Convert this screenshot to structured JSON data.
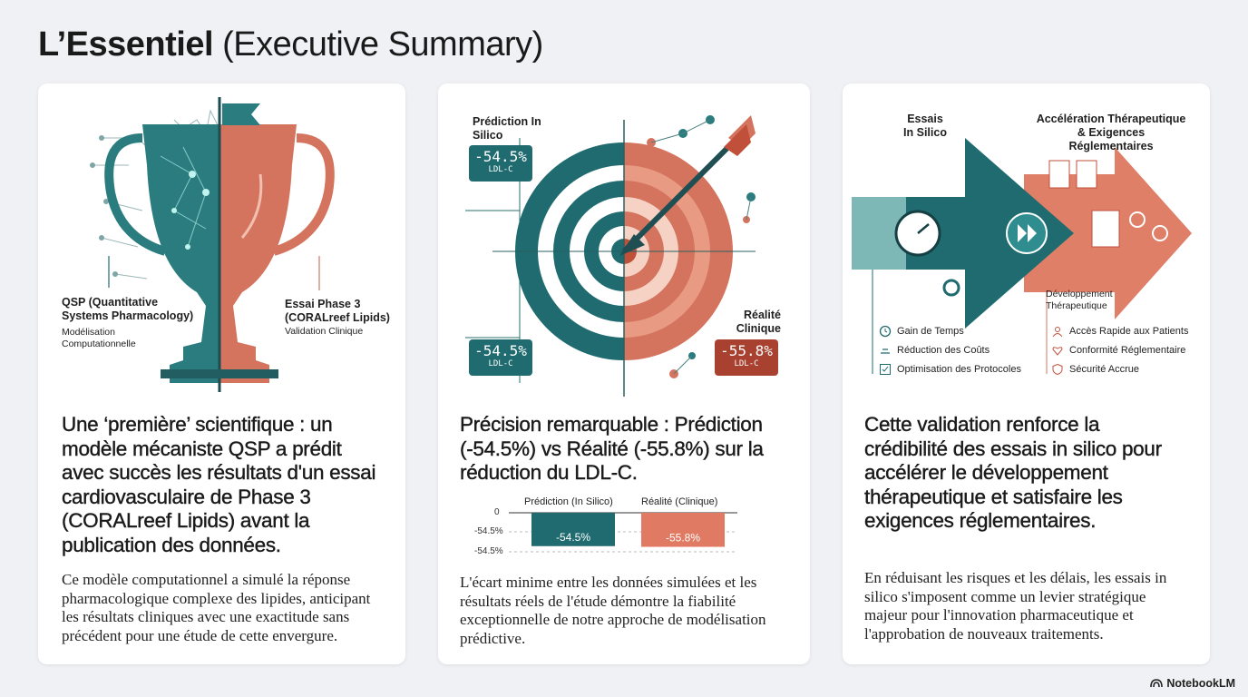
{
  "title": {
    "bold": "L’Essentiel",
    "rest": " (Executive Summary)"
  },
  "card1": {
    "left_label_title": "QSP (Quantitative Systems Pharmacology)",
    "left_label_sub": "Modélisation Computationnelle",
    "right_label_title": "Essai Phase 3 (CORALreef Lipids)",
    "right_label_sub": "Validation Clinique",
    "heading": "Une ‘première’ scientifique : un modèle mécaniste QSP a prédit avec succès les résultats d'un essai cardiovasculaire de Phase 3 (CORALreef Lipids) avant la publication des données.",
    "body": "Ce modèle computationnel a simulé la réponse pharmacologique complexe des lipides, anticipant les résultats cliniques avec une exactitude sans précédent pour une étude de cette envergure."
  },
  "card2": {
    "pred_title": "Prédiction In Silico",
    "pred_value": "-54.5%",
    "pred_unit": "LDL-C",
    "pred_value2": "-54.5%",
    "pred_unit2": "LDL-C",
    "real_title": "Réalité Clinique",
    "real_value": "-55.8%",
    "real_unit": "LDL-C",
    "heading": "Précision remarquable : Prédiction (-54.5%) vs Réalité (-55.8%) sur la réduction du LDL-C.",
    "body": "L'écart minime entre les données simulées et les résultats réels de l'étude démontre la fiabilité exceptionnelle de notre approche de modélisation prédictive."
  },
  "chart_data": {
    "type": "bar",
    "categories": [
      "Prédiction (In Silico)",
      "Réalité (Clinique)"
    ],
    "values": [
      -54.5,
      -55.8
    ],
    "value_labels": [
      "-54.5%",
      "-55.8%"
    ],
    "y_ticks": [
      "0",
      "-54.5%",
      "-54.5%"
    ],
    "colors": [
      "#1f6b6f",
      "#e07a62"
    ],
    "title": "",
    "xlabel": "",
    "ylabel": "",
    "ylim": [
      -60,
      0
    ]
  },
  "card3": {
    "left_title": "Essais In Silico",
    "right_title": "Accélération Thérapeutique & Exigences Réglementaires",
    "mid_title": "Développement Thérapeutique",
    "left_features": [
      "Gain de Temps",
      "Réduction des Coûts",
      "Optimisation des Protocoles"
    ],
    "right_features": [
      "Accès Rapide aux Patients",
      "Conformité Réglementaire",
      "Sécurité Accrue"
    ],
    "heading": "Cette validation renforce la crédibilité des essais in silico pour accélérer le développement thérapeutique et satisfaire les exigences réglementaires.",
    "body": "En réduisant les risques et les délais, les essais in silico s'imposent comme un levier stratégique majeur pour l'innovation pharmaceutique et l'approbation de nouveaux traitements."
  },
  "colors": {
    "teal": "#1f6b6f",
    "coral": "#d9735c",
    "dark": "#1a1a1a"
  },
  "footer": {
    "brand": "NotebookLM"
  }
}
